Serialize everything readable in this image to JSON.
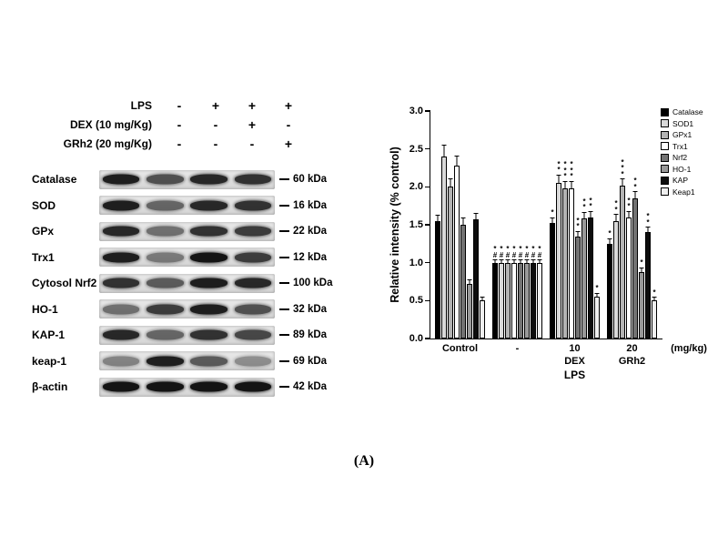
{
  "figure_label": "(A)",
  "blot_panel": {
    "treatments": [
      {
        "label": "LPS",
        "signs": [
          "-",
          "+",
          "+",
          "+"
        ]
      },
      {
        "label": "DEX (10 mg/Kg)",
        "signs": [
          "-",
          "-",
          "+",
          "-"
        ]
      },
      {
        "label": "GRh2 (20 mg/Kg)",
        "signs": [
          "-",
          "-",
          "-",
          "+"
        ]
      }
    ],
    "blots": [
      {
        "protein": "Catalase",
        "kda": "60 kDa",
        "band_intensities": [
          0.95,
          0.7,
          0.9,
          0.85
        ]
      },
      {
        "protein": "SOD",
        "kda": "16 kDa",
        "band_intensities": [
          0.95,
          0.6,
          0.9,
          0.85
        ]
      },
      {
        "protein": "GPx",
        "kda": "22 kDa",
        "band_intensities": [
          0.9,
          0.55,
          0.85,
          0.8
        ]
      },
      {
        "protein": "Trx1",
        "kda": "12 kDa",
        "band_intensities": [
          0.95,
          0.5,
          1.0,
          0.8
        ]
      },
      {
        "protein": "Cytosol Nrf2",
        "kda": "100 kDa",
        "band_intensities": [
          0.85,
          0.65,
          0.95,
          0.9
        ]
      },
      {
        "protein": "HO-1",
        "kda": "32 kDa",
        "band_intensities": [
          0.55,
          0.8,
          0.95,
          0.7
        ]
      },
      {
        "protein": "KAP-1",
        "kda": "89 kDa",
        "band_intensities": [
          0.9,
          0.6,
          0.85,
          0.75
        ]
      },
      {
        "protein": "keap-1",
        "kda": "69 kDa",
        "band_intensities": [
          0.45,
          0.95,
          0.65,
          0.4
        ]
      },
      {
        "protein": "β-actin",
        "kda": "42 kDa",
        "band_intensities": [
          1,
          1,
          1,
          1
        ]
      }
    ]
  },
  "chart_data": {
    "type": "bar",
    "title": "",
    "ylabel": "Relative intensity (% control)",
    "ylim": [
      0,
      3.0
    ],
    "yticks": [
      0.0,
      0.5,
      1.0,
      1.5,
      2.0,
      2.5,
      3.0
    ],
    "grid": false,
    "legend_position": "right",
    "categories": [
      "Control",
      "-",
      "10",
      "20"
    ],
    "category_sub_labels": [
      "",
      "",
      "DEX",
      "GRh2"
    ],
    "x_axis_note": "(mg/kg)",
    "group_bracket_label": "LPS",
    "series": [
      {
        "name": "Catalase",
        "color": "#000000",
        "values": [
          1.55,
          1.0,
          1.52,
          1.25
        ],
        "errors": [
          0.07,
          0.03,
          0.07,
          0.06
        ],
        "annotations": [
          "",
          "#*",
          "*",
          "*"
        ]
      },
      {
        "name": "SOD1",
        "color": "#d9d9d9",
        "values": [
          2.4,
          1.0,
          2.05,
          1.55
        ],
        "errors": [
          0.15,
          0.03,
          0.1,
          0.08
        ],
        "annotations": [
          "",
          "#*",
          "**",
          "**"
        ]
      },
      {
        "name": "GPx1",
        "color": "#b3b3b3",
        "values": [
          2.0,
          1.0,
          1.98,
          2.02
        ],
        "errors": [
          0.1,
          0.03,
          0.09,
          0.08
        ],
        "annotations": [
          "",
          "#*",
          "***",
          "***"
        ]
      },
      {
        "name": "Trx1",
        "color": "#ffffff",
        "values": [
          2.28,
          1.0,
          1.98,
          1.6
        ],
        "errors": [
          0.12,
          0.03,
          0.09,
          0.07
        ],
        "annotations": [
          "",
          "#*",
          "***",
          "**"
        ]
      },
      {
        "name": "Nrf2",
        "color": "#737373",
        "values": [
          1.5,
          1.0,
          1.35,
          1.85
        ],
        "errors": [
          0.08,
          0.03,
          0.06,
          0.08
        ],
        "annotations": [
          "",
          "#*",
          "**",
          "**"
        ]
      },
      {
        "name": "HO-1",
        "color": "#999999",
        "values": [
          0.72,
          1.0,
          1.58,
          0.88
        ],
        "errors": [
          0.05,
          0.03,
          0.08,
          0.05
        ],
        "annotations": [
          "",
          "#*",
          "**",
          "*"
        ]
      },
      {
        "name": "KAP",
        "color": "#0d0d0d",
        "values": [
          1.57,
          1.0,
          1.6,
          1.4
        ],
        "errors": [
          0.08,
          0.03,
          0.07,
          0.06
        ],
        "annotations": [
          "",
          "#*",
          "**",
          "**"
        ]
      },
      {
        "name": "Keap1",
        "color": "#efefef",
        "values": [
          0.5,
          1.0,
          0.55,
          0.5
        ],
        "errors": [
          0.04,
          0.03,
          0.04,
          0.04
        ],
        "annotations": [
          "",
          "#*",
          "*",
          "*"
        ]
      }
    ]
  }
}
